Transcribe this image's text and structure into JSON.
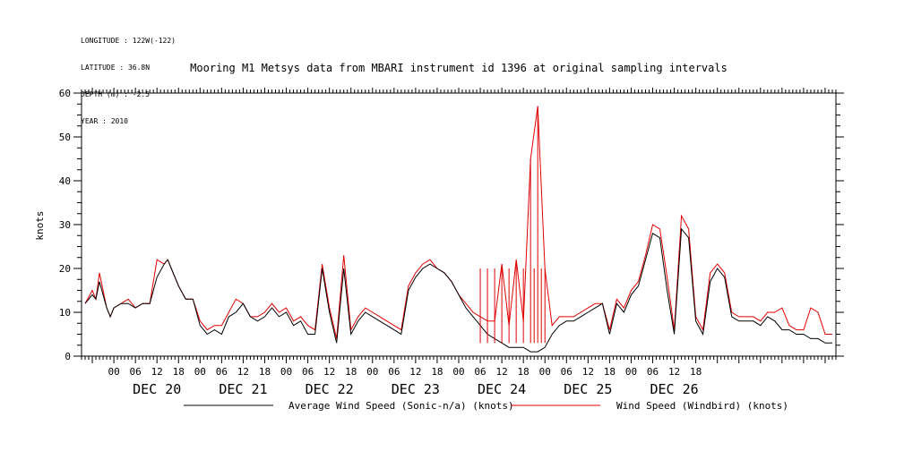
{
  "header": {
    "longitude": "LONGITUDE : 122W(-122)",
    "latitude": "LATITUDE : 36.8N",
    "depth": "DEPTH (m) : -2.5",
    "year": "YEAR : 2010"
  },
  "chart_data": {
    "type": "line",
    "title": "Mooring M1 Metsys data from MBARI instrument id 1396 at original sampling intervals",
    "ylabel": "knots",
    "xlabel": "",
    "ylim": [
      0,
      60
    ],
    "yticks": [
      0,
      10,
      20,
      30,
      40,
      50,
      60
    ],
    "xlim_hours": [
      -9,
      201
    ],
    "hour_tick_labels": [
      "00",
      "06",
      "12",
      "18",
      "00",
      "06",
      "12",
      "18",
      "00",
      "06",
      "12",
      "18",
      "00",
      "06",
      "12",
      "18",
      "00",
      "06",
      "12",
      "18",
      "00",
      "06",
      "12",
      "18",
      "00",
      "06",
      "12",
      "18"
    ],
    "day_labels": [
      "DEC 20",
      "DEC 21",
      "DEC 22",
      "DEC 23",
      "DEC 24",
      "DEC 25",
      "DEC 26"
    ],
    "grid": false,
    "legend_position": "bottom",
    "colors": {
      "black": "#000000",
      "red": "#e00000"
    },
    "series": [
      {
        "name": "Average Wind Speed (Sonic-n/a) (knots)",
        "color": "#000000",
        "x": [
          -8,
          -6,
          -5,
          -4,
          -2,
          -1,
          0,
          2,
          4,
          6,
          8,
          10,
          12,
          14,
          15,
          16,
          18,
          20,
          22,
          24,
          26,
          28,
          30,
          32,
          34,
          36,
          38,
          40,
          42,
          44,
          46,
          48,
          50,
          52,
          54,
          56,
          58,
          60,
          62,
          64,
          66,
          68,
          70,
          72,
          74,
          76,
          78,
          80,
          82,
          84,
          86,
          88,
          90,
          92,
          94,
          96,
          98,
          100,
          102,
          104,
          106,
          108,
          110,
          112,
          114,
          116,
          118,
          120,
          122,
          124,
          126,
          128,
          130,
          132,
          134,
          136,
          138,
          140,
          142,
          144,
          146,
          148,
          150,
          152,
          154,
          156,
          158,
          160,
          162,
          164,
          166,
          168,
          170,
          172,
          174,
          176,
          178,
          180,
          182,
          184,
          186,
          188,
          190,
          192,
          194,
          196,
          198,
          200
        ],
        "values": [
          12,
          14,
          13,
          17,
          11,
          9,
          11,
          12,
          12,
          11,
          12,
          12,
          18,
          21,
          22,
          20,
          16,
          13,
          13,
          7,
          5,
          6,
          5,
          9,
          10,
          12,
          9,
          8,
          9,
          11,
          9,
          10,
          7,
          8,
          5,
          5,
          20,
          10,
          3,
          20,
          5,
          8,
          10,
          9,
          8,
          7,
          6,
          5,
          15,
          18,
          20,
          21,
          20,
          19,
          17,
          14,
          11,
          9,
          7,
          5,
          4,
          3,
          2,
          2,
          2,
          1,
          1,
          2,
          5,
          7,
          8,
          8,
          9,
          10,
          11,
          12,
          5,
          12,
          10,
          14,
          16,
          22,
          28,
          27,
          15,
          5,
          29,
          27,
          8,
          5,
          17,
          20,
          18,
          9,
          8,
          8,
          8,
          7,
          9,
          8,
          6,
          6,
          5,
          5,
          4,
          4,
          3,
          3
        ]
      },
      {
        "name": "Wind Speed (Windbird) (knots)",
        "color": "#e00000",
        "x": [
          -8,
          -6,
          -5,
          -4,
          -2,
          -1,
          0,
          2,
          4,
          6,
          8,
          10,
          12,
          14,
          15,
          16,
          18,
          20,
          22,
          24,
          26,
          28,
          30,
          32,
          34,
          36,
          38,
          40,
          42,
          44,
          46,
          48,
          50,
          52,
          54,
          56,
          58,
          60,
          62,
          64,
          66,
          68,
          70,
          72,
          74,
          76,
          78,
          80,
          82,
          84,
          86,
          88,
          90,
          92,
          94,
          96,
          98,
          100,
          102,
          104,
          106,
          108,
          110,
          112,
          114,
          116,
          118,
          120,
          122,
          124,
          126,
          128,
          130,
          132,
          134,
          136,
          138,
          140,
          142,
          144,
          146,
          148,
          150,
          152,
          154,
          156,
          158,
          160,
          162,
          164,
          166,
          168,
          170,
          172,
          174,
          176,
          178,
          180,
          182,
          184,
          186,
          188,
          190,
          192,
          194,
          196,
          198,
          200
        ],
        "values": [
          12,
          15,
          13,
          19,
          11,
          9,
          11,
          12,
          13,
          11,
          12,
          12,
          22,
          21,
          22,
          20,
          16,
          13,
          13,
          8,
          6,
          7,
          7,
          10,
          13,
          12,
          9,
          9,
          10,
          12,
          10,
          11,
          8,
          9,
          7,
          6,
          21,
          11,
          4,
          23,
          6,
          9,
          11,
          10,
          9,
          8,
          7,
          6,
          16,
          19,
          21,
          22,
          20,
          19,
          17,
          14,
          12,
          10,
          9,
          8,
          8,
          21,
          7,
          22,
          8,
          45,
          57,
          20,
          7,
          9,
          9,
          9,
          10,
          11,
          12,
          12,
          6,
          13,
          11,
          15,
          17,
          23,
          30,
          29,
          18,
          6,
          32,
          29,
          9,
          6,
          19,
          21,
          19,
          10,
          9,
          9,
          9,
          8,
          10,
          10,
          11,
          7,
          6,
          6,
          11,
          10,
          5,
          5
        ],
        "note_spikes_hours": [
          102,
          104,
          106,
          108,
          110,
          112,
          114,
          116,
          117,
          118,
          119,
          120
        ]
      }
    ]
  }
}
